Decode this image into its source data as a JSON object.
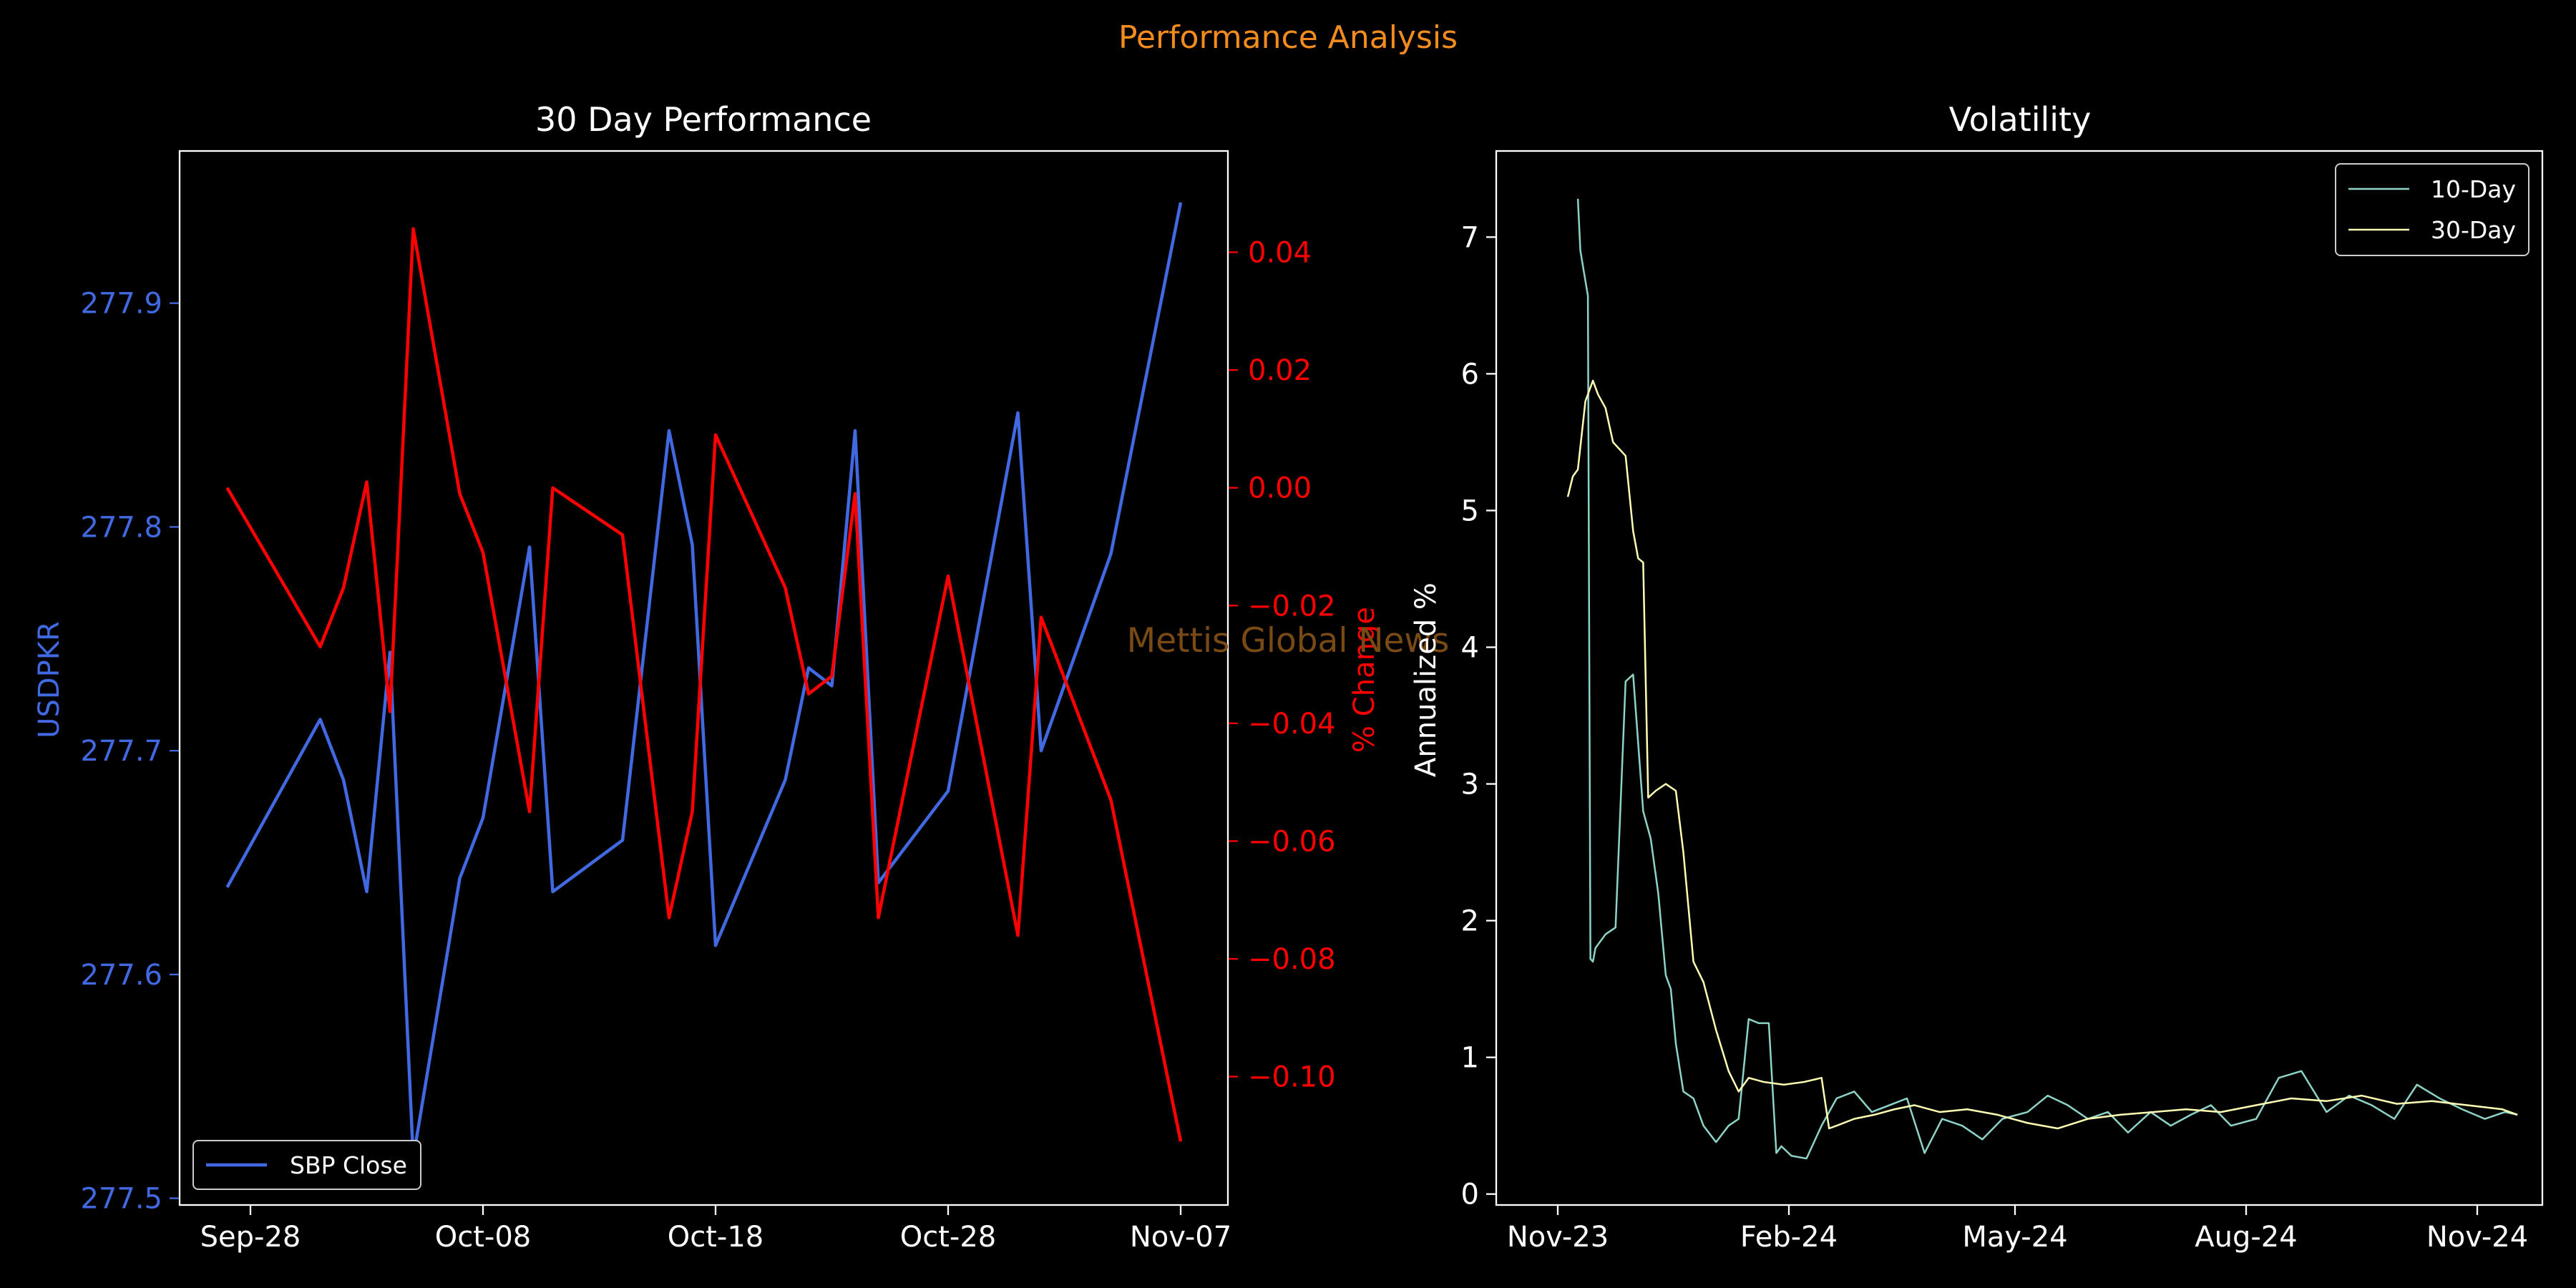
{
  "suptitle": "Performance Analysis",
  "watermark": "Mettis Global News",
  "colors": {
    "background": "#000000",
    "suptitle": "#f28c1e",
    "watermark": "#7a4a14",
    "price": "#4169e1",
    "pct": "#ff0000",
    "vol10": "#8dd3c7",
    "vol30": "#ffffb3",
    "axis": "#ffffff"
  },
  "chart_data": [
    {
      "type": "line",
      "title": "30 Day Performance",
      "ylabel": "USDPKR",
      "y2label": "% Change",
      "x_ticks": [
        "Sep-28",
        "Oct-08",
        "Oct-18",
        "Oct-28",
        "Nov-07"
      ],
      "y_ticks": [
        "277.5",
        "277.6",
        "277.7",
        "277.8",
        "277.9"
      ],
      "y2_ticks": [
        "0.04",
        "0.02",
        "0.00",
        "−0.02",
        "−0.04",
        "−0.06",
        "−0.08",
        "−0.10"
      ],
      "ylim": [
        277.497,
        277.968
      ],
      "y2lim": [
        -0.1218,
        0.0572
      ],
      "legend_position": "lower-left",
      "series": [
        {
          "name": "SBP Close",
          "x": [
            "2024-09-27",
            "2024-10-01",
            "2024-10-02",
            "2024-10-03",
            "2024-10-04",
            "2024-10-05",
            "2024-10-07",
            "2024-10-08",
            "2024-10-10",
            "2024-10-11",
            "2024-10-14",
            "2024-10-16",
            "2024-10-17",
            "2024-10-18",
            "2024-10-21",
            "2024-10-22",
            "2024-10-23",
            "2024-10-24",
            "2024-10-25",
            "2024-10-28",
            "2024-10-31",
            "2024-11-01",
            "2024-11-04",
            "2024-11-07"
          ],
          "values": [
            277.639,
            277.714,
            277.687,
            277.637,
            277.744,
            277.518,
            277.643,
            277.67,
            277.791,
            277.637,
            277.66,
            277.843,
            277.792,
            277.613,
            277.687,
            277.737,
            277.729,
            277.843,
            277.641,
            277.682,
            277.851,
            277.7,
            277.788,
            277.945
          ]
        },
        {
          "name": "% Change",
          "x": [
            "2024-09-27",
            "2024-10-01",
            "2024-10-02",
            "2024-10-03",
            "2024-10-04",
            "2024-10-05",
            "2024-10-07",
            "2024-10-08",
            "2024-10-10",
            "2024-10-11",
            "2024-10-14",
            "2024-10-16",
            "2024-10-17",
            "2024-10-18",
            "2024-10-21",
            "2024-10-22",
            "2024-10-23",
            "2024-10-24",
            "2024-10-25",
            "2024-10-28",
            "2024-10-31",
            "2024-11-01",
            "2024-11-04",
            "2024-11-07"
          ],
          "values": [
            0.0,
            -0.027,
            -0.017,
            0.001,
            -0.038,
            0.044,
            -0.001,
            -0.011,
            -0.055,
            0.0,
            -0.008,
            -0.073,
            -0.055,
            0.009,
            -0.017,
            -0.035,
            -0.032,
            -0.001,
            -0.073,
            -0.015,
            -0.076,
            -0.022,
            -0.053,
            -0.111
          ]
        }
      ]
    },
    {
      "type": "line",
      "title": "Volatility",
      "ylabel": "Annualized %",
      "x_ticks": [
        "Nov-23",
        "Feb-24",
        "May-24",
        "Aug-24",
        "Nov-24"
      ],
      "y_ticks": [
        "0",
        "1",
        "2",
        "3",
        "4",
        "5",
        "6",
        "7"
      ],
      "ylim": [
        -0.08,
        7.63
      ],
      "legend_position": "top-right",
      "series": [
        {
          "name": "10-Day",
          "x": [
            "2023-11-09",
            "2023-11-10",
            "2023-11-13",
            "2023-11-14",
            "2023-11-15",
            "2023-11-16",
            "2023-11-20",
            "2023-11-24",
            "2023-11-28",
            "2023-12-01",
            "2023-12-05",
            "2023-12-08",
            "2023-12-11",
            "2023-12-14",
            "2023-12-16",
            "2023-12-18",
            "2023-12-21",
            "2023-12-25",
            "2023-12-29",
            "2024-01-03",
            "2024-01-08",
            "2024-01-12",
            "2024-01-16",
            "2024-01-20",
            "2024-01-24",
            "2024-01-27",
            "2024-01-29",
            "2024-02-02",
            "2024-02-08",
            "2024-02-14",
            "2024-02-20",
            "2024-02-27",
            "2024-03-05",
            "2024-03-12",
            "2024-03-19",
            "2024-03-26",
            "2024-04-02",
            "2024-04-10",
            "2024-04-18",
            "2024-04-26",
            "2024-05-06",
            "2024-05-14",
            "2024-05-22",
            "2024-05-30",
            "2024-06-07",
            "2024-06-15",
            "2024-06-24",
            "2024-07-02",
            "2024-07-10",
            "2024-07-18",
            "2024-07-26",
            "2024-08-05",
            "2024-08-14",
            "2024-08-23",
            "2024-09-02",
            "2024-09-11",
            "2024-09-20",
            "2024-09-29",
            "2024-10-08",
            "2024-10-17",
            "2024-10-26",
            "2024-11-04",
            "2024-11-12",
            "2024-11-17"
          ],
          "values": [
            7.28,
            6.9,
            6.57,
            1.72,
            1.7,
            1.8,
            1.9,
            1.95,
            3.75,
            3.8,
            2.8,
            2.6,
            2.2,
            1.6,
            1.5,
            1.1,
            0.75,
            0.7,
            0.5,
            0.38,
            0.5,
            0.55,
            1.28,
            1.25,
            1.25,
            0.3,
            0.35,
            0.28,
            0.26,
            0.5,
            0.7,
            0.75,
            0.6,
            0.65,
            0.7,
            0.3,
            0.55,
            0.5,
            0.4,
            0.55,
            0.6,
            0.72,
            0.65,
            0.55,
            0.6,
            0.45,
            0.6,
            0.5,
            0.58,
            0.65,
            0.5,
            0.55,
            0.85,
            0.9,
            0.6,
            0.72,
            0.65,
            0.55,
            0.8,
            0.7,
            0.62,
            0.55,
            0.6,
            0.58
          ]
        },
        {
          "name": "30-Day",
          "x": [
            "2023-11-05",
            "2023-11-07",
            "2023-11-09",
            "2023-11-12",
            "2023-11-15",
            "2023-11-17",
            "2023-11-20",
            "2023-11-23",
            "2023-11-28",
            "2023-12-01",
            "2023-12-03",
            "2023-12-05",
            "2023-12-07",
            "2023-12-10",
            "2023-12-14",
            "2023-12-18",
            "2023-12-21",
            "2023-12-25",
            "2023-12-29",
            "2024-01-03",
            "2024-01-08",
            "2024-01-12",
            "2024-01-16",
            "2024-01-22",
            "2024-01-30",
            "2024-02-07",
            "2024-02-14",
            "2024-02-17",
            "2024-02-20",
            "2024-02-27",
            "2024-03-06",
            "2024-03-14",
            "2024-03-22",
            "2024-04-01",
            "2024-04-12",
            "2024-04-24",
            "2024-05-06",
            "2024-05-18",
            "2024-05-30",
            "2024-06-12",
            "2024-06-25",
            "2024-07-08",
            "2024-07-22",
            "2024-08-05",
            "2024-08-19",
            "2024-09-02",
            "2024-09-16",
            "2024-09-30",
            "2024-10-14",
            "2024-10-28",
            "2024-11-11",
            "2024-11-17"
          ],
          "values": [
            5.1,
            5.25,
            5.3,
            5.8,
            5.95,
            5.85,
            5.75,
            5.5,
            5.4,
            4.85,
            4.65,
            4.62,
            2.9,
            2.95,
            3.0,
            2.95,
            2.5,
            1.7,
            1.55,
            1.2,
            0.9,
            0.75,
            0.85,
            0.82,
            0.8,
            0.82,
            0.85,
            0.48,
            0.5,
            0.55,
            0.58,
            0.62,
            0.65,
            0.6,
            0.62,
            0.58,
            0.52,
            0.48,
            0.55,
            0.58,
            0.6,
            0.62,
            0.6,
            0.65,
            0.7,
            0.68,
            0.72,
            0.66,
            0.68,
            0.65,
            0.62,
            0.58
          ]
        }
      ]
    }
  ]
}
